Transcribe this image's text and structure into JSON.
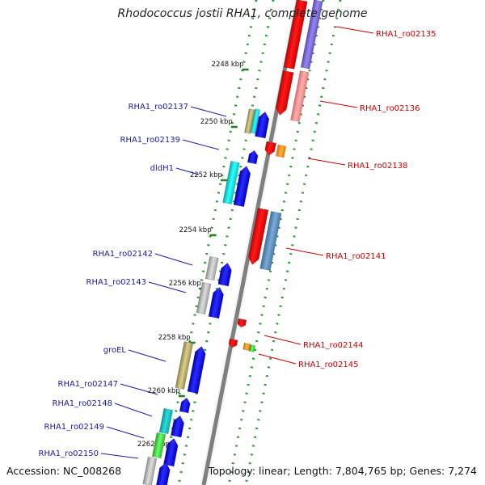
{
  "title": "Rhodococcus jostii RHA1, complete genome",
  "footer": {
    "accession": "Accession: NC_008268",
    "summary": "Topology: linear; Length: 7,804,765 bp; Genes: 7,274"
  },
  "colors": {
    "backbone": "#8a8a8a",
    "plus_label": "#1a1aa8",
    "minus_label": "#cc0000",
    "dot_track": "#2a9a2a"
  },
  "ticks": [
    {
      "label": "2248 kbp"
    },
    {
      "label": "2250 kbp"
    },
    {
      "label": "2252 kbp"
    },
    {
      "label": "2254 kbp"
    },
    {
      "label": "2256 kbp"
    },
    {
      "label": "2258 kbp"
    },
    {
      "label": "2260 kbp"
    },
    {
      "label": "2262 kbp"
    }
  ],
  "labels_left": [
    {
      "text": "RHA1_ro02137"
    },
    {
      "text": "RHA1_ro02139"
    },
    {
      "text": "dldH1"
    },
    {
      "text": "RHA1_ro02142"
    },
    {
      "text": "RHA1_ro02143"
    },
    {
      "text": "groEL"
    },
    {
      "text": "RHA1_ro02147"
    },
    {
      "text": "RHA1_ro02148"
    },
    {
      "text": "RHA1_ro02149"
    },
    {
      "text": "RHA1_ro02150"
    }
  ],
  "labels_right": [
    {
      "text": "RHA1_ro02135"
    },
    {
      "text": "RHA1_ro02136"
    },
    {
      "text": "RHA1_ro02138"
    },
    {
      "text": "RHA1_ro02141"
    },
    {
      "text": "RHA1_ro02144"
    },
    {
      "text": "RHA1_ro02145"
    }
  ]
}
